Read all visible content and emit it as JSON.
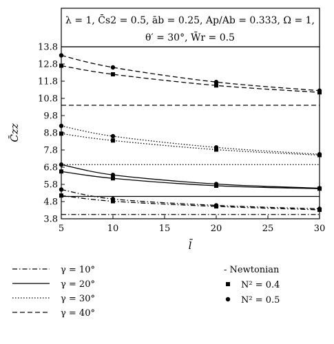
{
  "chart_data": {
    "type": "line",
    "title": "",
    "annotation": {
      "line1": "λ = 1, C̄s2 = 0.5, āb = 0.25, Ap/Ab = 0.333, Ω = 1,",
      "line2": "θ′ = 30°, W̄r = 0.5"
    },
    "xlabel": "l̄",
    "ylabel": "C̄zz",
    "xlim": [
      5,
      30
    ],
    "ylim": [
      3.8,
      13.8
    ],
    "x_ticks": [
      5,
      10,
      15,
      20,
      25,
      30
    ],
    "y_ticks": [
      "3.8",
      "4.8",
      "5.8",
      "6.8",
      "7.8",
      "8.8",
      "9.8",
      "10.8",
      "11.8",
      "12.8",
      "13.8"
    ],
    "grid": false,
    "legend": {
      "line_styles": [
        {
          "label": "γ = 10°",
          "dash": "dashdot"
        },
        {
          "label": "γ = 20°",
          "dash": "solid"
        },
        {
          "label": "γ = 30°",
          "dash": "dotted"
        },
        {
          "label": "γ = 40°",
          "dash": "dashed"
        }
      ],
      "markers": [
        {
          "label": "- Newtonian",
          "marker": "none"
        },
        {
          "label": "N² = 0.4",
          "marker": "square"
        },
        {
          "label": "N² = 0.5",
          "marker": "circle"
        }
      ]
    },
    "series": [
      {
        "gamma": "γ = 10°",
        "fluid": "Newtonian",
        "dash": "dashdot",
        "marker": "none",
        "x": [
          5,
          30
        ],
        "y": [
          4.05,
          4.05
        ]
      },
      {
        "gamma": "γ = 10°",
        "fluid": "N² = 0.4",
        "dash": "dashdot",
        "marker": "square",
        "x": [
          5,
          10,
          20,
          30
        ],
        "y": [
          5.15,
          4.82,
          4.52,
          4.32
        ]
      },
      {
        "gamma": "γ = 10°",
        "fluid": "N² = 0.5",
        "dash": "dashdot",
        "marker": "circle",
        "x": [
          5,
          10,
          20,
          30
        ],
        "y": [
          5.5,
          4.95,
          4.58,
          4.38
        ]
      },
      {
        "gamma": "γ = 20°",
        "fluid": "Newtonian",
        "dash": "solid",
        "marker": "none",
        "x": [
          5,
          30
        ],
        "y": [
          5.1,
          5.1
        ]
      },
      {
        "gamma": "γ = 20°",
        "fluid": "N² = 0.4",
        "dash": "solid",
        "marker": "square",
        "x": [
          5,
          10,
          20,
          30
        ],
        "y": [
          6.55,
          6.15,
          5.72,
          5.55
        ]
      },
      {
        "gamma": "γ = 20°",
        "fluid": "N² = 0.5",
        "dash": "solid",
        "marker": "circle",
        "x": [
          5,
          10,
          20,
          30
        ],
        "y": [
          6.95,
          6.35,
          5.82,
          5.58
        ]
      },
      {
        "gamma": "γ = 30°",
        "fluid": "Newtonian",
        "dash": "dotted",
        "marker": "none",
        "x": [
          5,
          30
        ],
        "y": [
          6.95,
          6.95
        ]
      },
      {
        "gamma": "γ = 30°",
        "fluid": "N² = 0.4",
        "dash": "dotted",
        "marker": "square",
        "x": [
          5,
          10,
          20,
          30
        ],
        "y": [
          8.75,
          8.35,
          7.82,
          7.5
        ]
      },
      {
        "gamma": "γ = 30°",
        "fluid": "N² = 0.5",
        "dash": "dotted",
        "marker": "circle",
        "x": [
          5,
          10,
          20,
          30
        ],
        "y": [
          9.2,
          8.6,
          7.95,
          7.55
        ]
      },
      {
        "gamma": "γ = 40°",
        "fluid": "Newtonian",
        "dash": "dashed",
        "marker": "none",
        "x": [
          5,
          30
        ],
        "y": [
          10.4,
          10.4
        ]
      },
      {
        "gamma": "γ = 40°",
        "fluid": "N² = 0.4",
        "dash": "dashed",
        "marker": "square",
        "x": [
          5,
          10,
          20,
          30
        ],
        "y": [
          12.7,
          12.2,
          11.55,
          11.15
        ]
      },
      {
        "gamma": "γ = 40°",
        "fluid": "N² = 0.5",
        "dash": "dashed",
        "marker": "circle",
        "x": [
          5,
          10,
          20,
          30
        ],
        "y": [
          13.3,
          12.6,
          11.75,
          11.25
        ]
      }
    ]
  }
}
